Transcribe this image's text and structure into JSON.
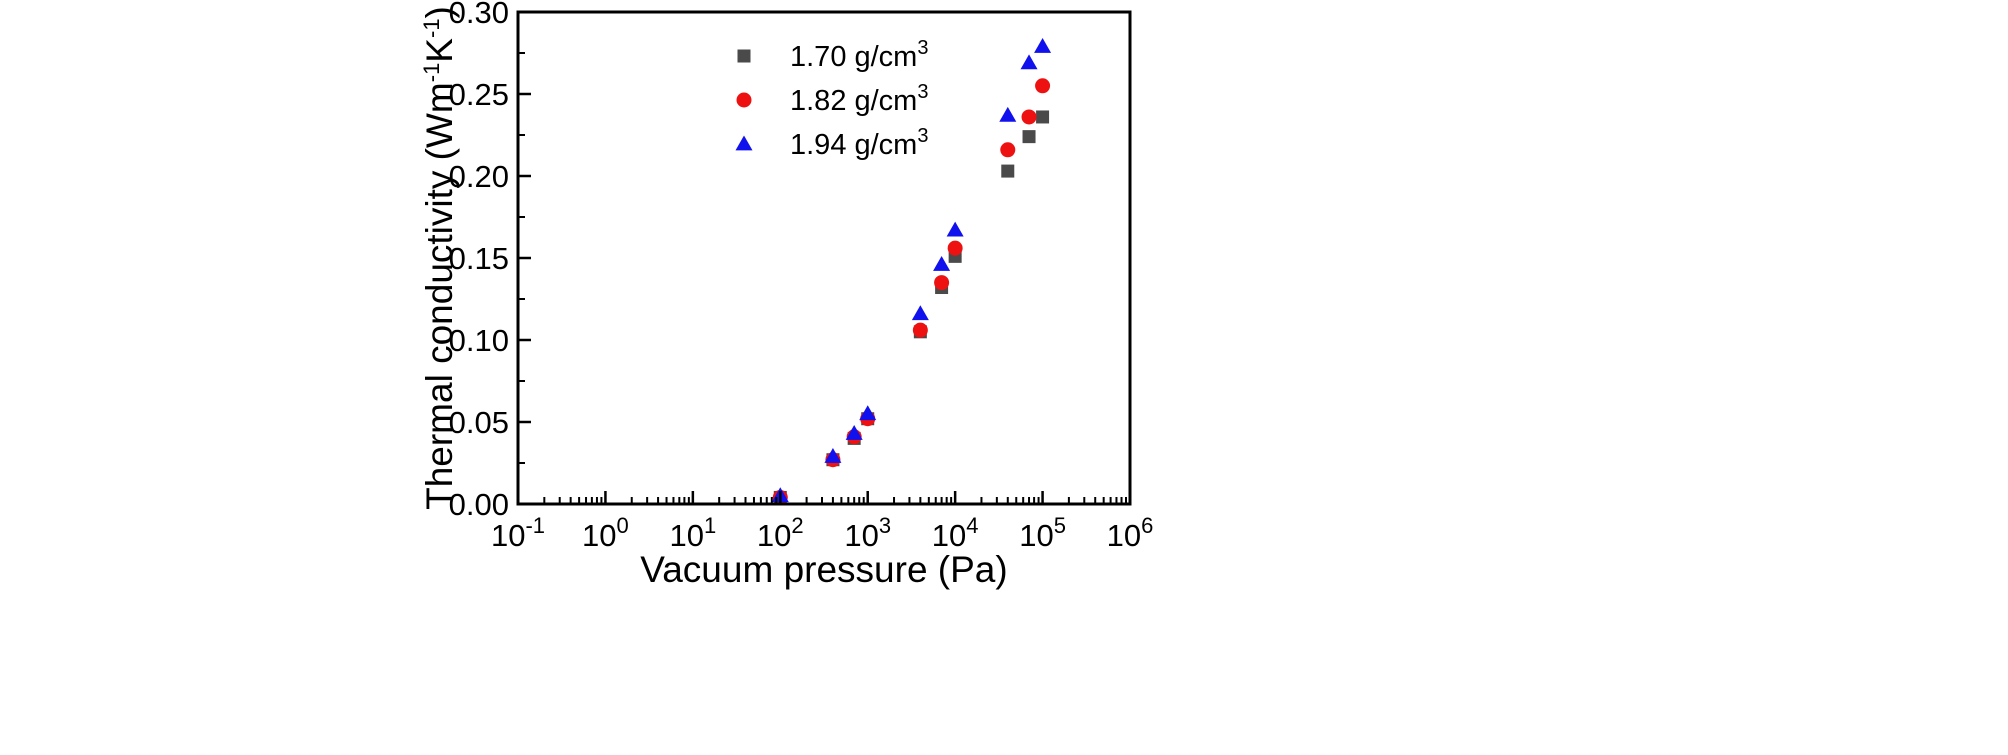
{
  "chart_data": {
    "type": "scatter",
    "xscale": "log",
    "xlabel": "Vacuum pressure (Pa)",
    "ylabel": {
      "main": "Thermal conductivity (Wm",
      "sup1": "-1",
      "mid": "K",
      "sup2": "-1",
      "end": ")"
    },
    "xlim": [
      0.1,
      1000000
    ],
    "ylim": [
      0,
      0.3
    ],
    "xticks": [
      {
        "value": 0.1,
        "base": "10",
        "exp": "-1"
      },
      {
        "value": 1,
        "base": "10",
        "exp": "0"
      },
      {
        "value": 10,
        "base": "10",
        "exp": "1"
      },
      {
        "value": 100,
        "base": "10",
        "exp": "2"
      },
      {
        "value": 1000,
        "base": "10",
        "exp": "3"
      },
      {
        "value": 10000,
        "base": "10",
        "exp": "4"
      },
      {
        "value": 100000,
        "base": "10",
        "exp": "5"
      },
      {
        "value": 1000000,
        "base": "10",
        "exp": "6"
      }
    ],
    "yticks": [
      {
        "value": 0.0,
        "label": "0.00"
      },
      {
        "value": 0.05,
        "label": "0.05"
      },
      {
        "value": 0.1,
        "label": "0.10"
      },
      {
        "value": 0.15,
        "label": "0.15"
      },
      {
        "value": 0.2,
        "label": "0.20"
      },
      {
        "value": 0.25,
        "label": "0.25"
      },
      {
        "value": 0.3,
        "label": "0.30"
      }
    ],
    "legend_position": "top-left",
    "x": [
      100,
      400,
      700,
      1000,
      4000,
      7000,
      10000,
      40000,
      70000,
      100000
    ],
    "series": [
      {
        "name": "1.70 g/cm",
        "sup": "3",
        "marker": "square",
        "color": "#4a4a4a",
        "values": [
          0.004,
          0.027,
          0.04,
          0.052,
          0.105,
          0.132,
          0.151,
          0.203,
          0.224,
          0.236
        ]
      },
      {
        "name": "1.82 g/cm",
        "sup": "3",
        "marker": "circle",
        "color": "#ee1111",
        "values": [
          0.004,
          0.027,
          0.041,
          0.052,
          0.106,
          0.135,
          0.156,
          0.216,
          0.236,
          0.255
        ]
      },
      {
        "name": "1.94 g/cm",
        "sup": "3",
        "marker": "triangle",
        "color": "#1111ee",
        "values": [
          0.005,
          0.029,
          0.043,
          0.055,
          0.116,
          0.146,
          0.167,
          0.237,
          0.269,
          0.279
        ]
      }
    ]
  }
}
